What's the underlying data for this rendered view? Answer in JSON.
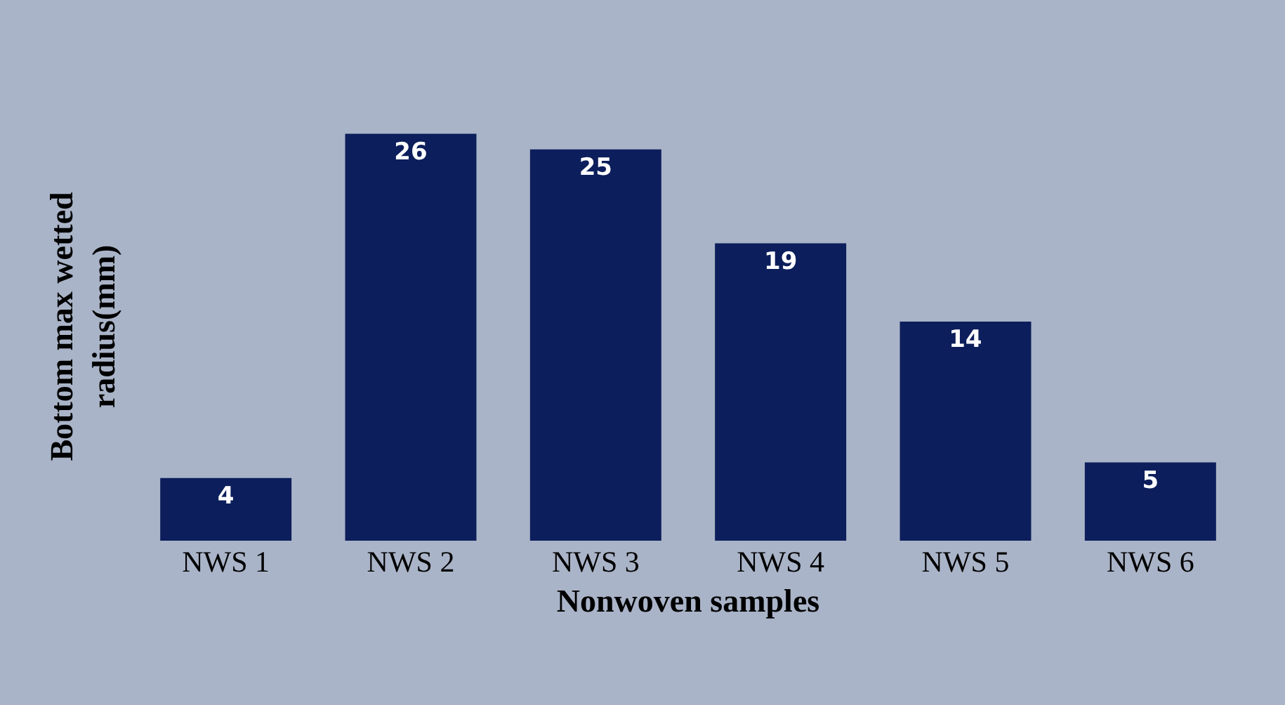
{
  "chart_data": {
    "type": "bar",
    "xlabel": "Nonwoven samples",
    "ylabel": "Bottom max wetted radius(mm)",
    "categories": [
      "NWS 1",
      "NWS 2",
      "NWS 3",
      "NWS 4",
      "NWS 5",
      "NWS 6"
    ],
    "values": [
      4,
      26,
      25,
      19,
      14,
      5
    ],
    "color": "#0c1e5b",
    "data_labels": true
  }
}
